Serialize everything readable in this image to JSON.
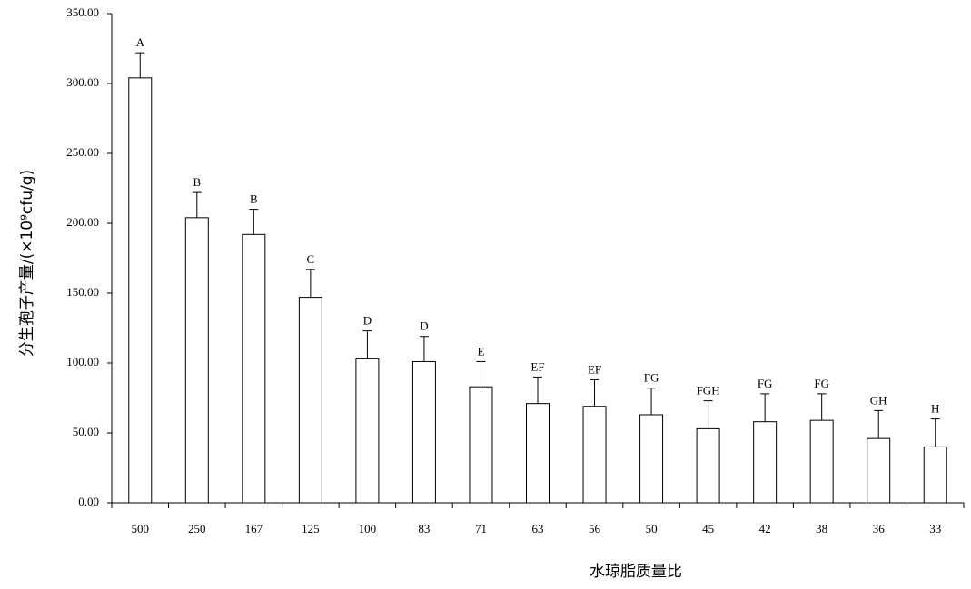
{
  "chart_data": {
    "type": "bar",
    "y_label": "分生孢子产量/(×10⁹cfu/g)",
    "x_label": "水琼脂质量比",
    "categories": [
      "500",
      "250",
      "167",
      "125",
      "100",
      "83",
      "71",
      "63",
      "56",
      "50",
      "45",
      "42",
      "38",
      "36",
      "33"
    ],
    "values": [
      304,
      204,
      192,
      147,
      103,
      101,
      83,
      71,
      69,
      63,
      53,
      58,
      59,
      46,
      40
    ],
    "errors": [
      18,
      18,
      18,
      20,
      20,
      18,
      18,
      19,
      19,
      19,
      20,
      20,
      19,
      20,
      20
    ],
    "letters": [
      "A",
      "B",
      "B",
      "C",
      "D",
      "D",
      "E",
      "EF",
      "EF",
      "FG",
      "FGH",
      "FG",
      "FG",
      "GH",
      "H"
    ],
    "color": "#ffffff",
    "ylim": [
      0,
      350
    ],
    "yticks": [
      {
        "value": 0,
        "label": "0.00"
      },
      {
        "value": 50,
        "label": "50.00"
      },
      {
        "value": 100,
        "label": "100.00"
      },
      {
        "value": 150,
        "label": "150.00"
      },
      {
        "value": 200,
        "label": "200.00"
      },
      {
        "value": 250,
        "label": "250.00"
      },
      {
        "value": 300,
        "label": "300.00"
      },
      {
        "value": 350,
        "label": "350.00"
      }
    ]
  }
}
